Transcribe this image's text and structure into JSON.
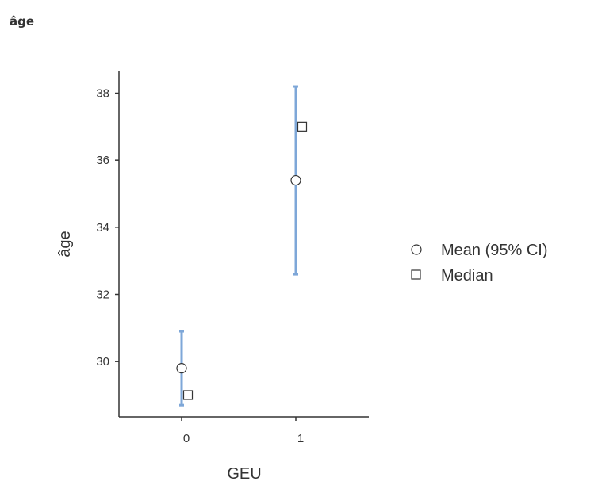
{
  "page": {
    "heading": "âge"
  },
  "chart_data": {
    "type": "scatter",
    "xlabel": "GEU",
    "ylabel": "âge",
    "categories": [
      "0",
      "1"
    ],
    "ylim": [
      28.35,
      38.65
    ],
    "yticks": [
      30,
      32,
      34,
      36,
      38
    ],
    "colors": {
      "ci": "#7ea7d8",
      "marker": "#333333",
      "axis": "#333333"
    },
    "series": [
      {
        "name": "Mean (95% CI)",
        "marker": "circle",
        "points": [
          {
            "x": "0",
            "y": 29.8,
            "ci_low": 28.7,
            "ci_high": 30.9
          },
          {
            "x": "1",
            "y": 35.4,
            "ci_low": 32.6,
            "ci_high": 38.2
          }
        ]
      },
      {
        "name": "Median",
        "marker": "square",
        "points": [
          {
            "x": "0",
            "y": 29.0
          },
          {
            "x": "1",
            "y": 37.0
          }
        ]
      }
    ],
    "legend_position": "right"
  }
}
